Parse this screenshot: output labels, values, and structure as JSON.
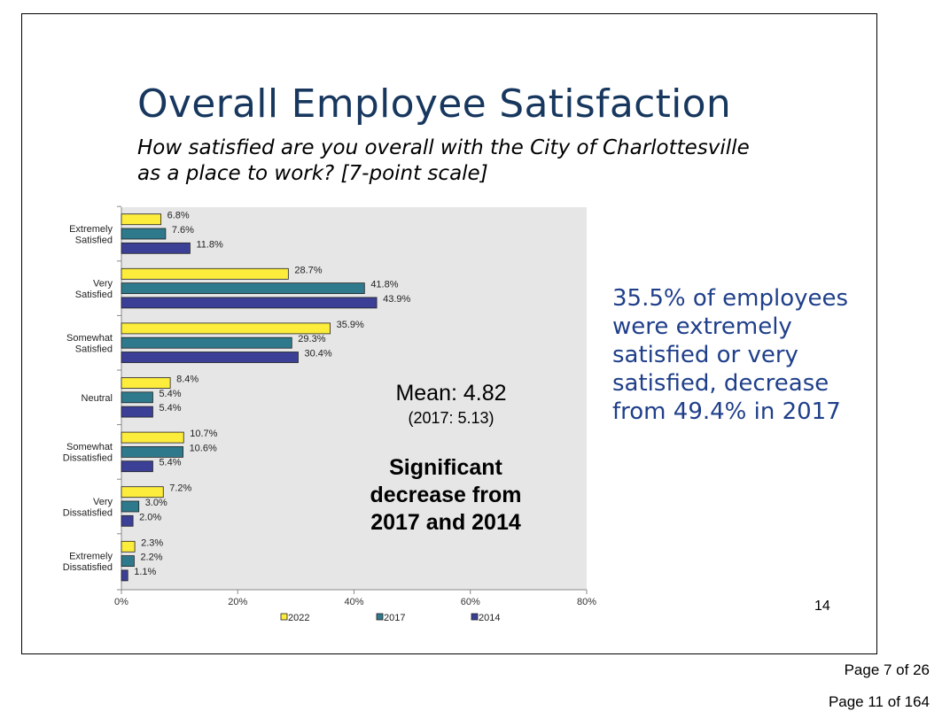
{
  "slide": {
    "title": "Overall Employee Satisfaction",
    "question_lines": [
      "How satisfied are you overall with the City of Charlottesville",
      "as a place to work?  [7-point scale]"
    ],
    "callout_lines": [
      "35.5% of employees",
      "were extremely",
      "satisfied or very",
      "satisfied, decrease",
      "from 49.4% in 2017"
    ],
    "page_number": "14"
  },
  "chart_data": {
    "type": "bar",
    "orientation": "horizontal",
    "categories": [
      [
        "Extremely",
        "Satisfied"
      ],
      [
        "Very",
        "Satisfied"
      ],
      [
        "Somewhat",
        "Satisfied"
      ],
      [
        "Neutral"
      ],
      [
        "Somewhat",
        "Dissatisfied"
      ],
      [
        "Very",
        "Dissatisfied"
      ],
      [
        "Extremely",
        "Dissatisfied"
      ]
    ],
    "series": [
      {
        "name": "2022",
        "color": "#fcec3c",
        "values": [
          6.8,
          28.7,
          35.9,
          8.4,
          10.7,
          7.2,
          2.3
        ]
      },
      {
        "name": "2017",
        "color": "#2e7a8c",
        "values": [
          7.6,
          41.8,
          29.3,
          5.4,
          10.6,
          3.0,
          2.2
        ]
      },
      {
        "name": "2014",
        "color": "#3b3f95",
        "values": [
          11.8,
          43.9,
          30.4,
          5.4,
          5.4,
          2.0,
          1.1
        ]
      }
    ],
    "xlim": [
      0,
      80
    ],
    "xticks": [
      0,
      20,
      40,
      60,
      80
    ],
    "tick_suffix": "%",
    "value_suffix": "%",
    "legend_position": "bottom",
    "plot_background": "#e6e6e6",
    "annotations": {
      "mean_label": "Mean:  4.82",
      "mean_prior": "(2017: 5.13)",
      "significance_lines": [
        "Significant",
        "decrease from",
        "2017 and 2014"
      ]
    }
  },
  "footer": {
    "page_of_doc": "Page 7 of 26",
    "page_of_packet": "Page 11 of 164"
  }
}
